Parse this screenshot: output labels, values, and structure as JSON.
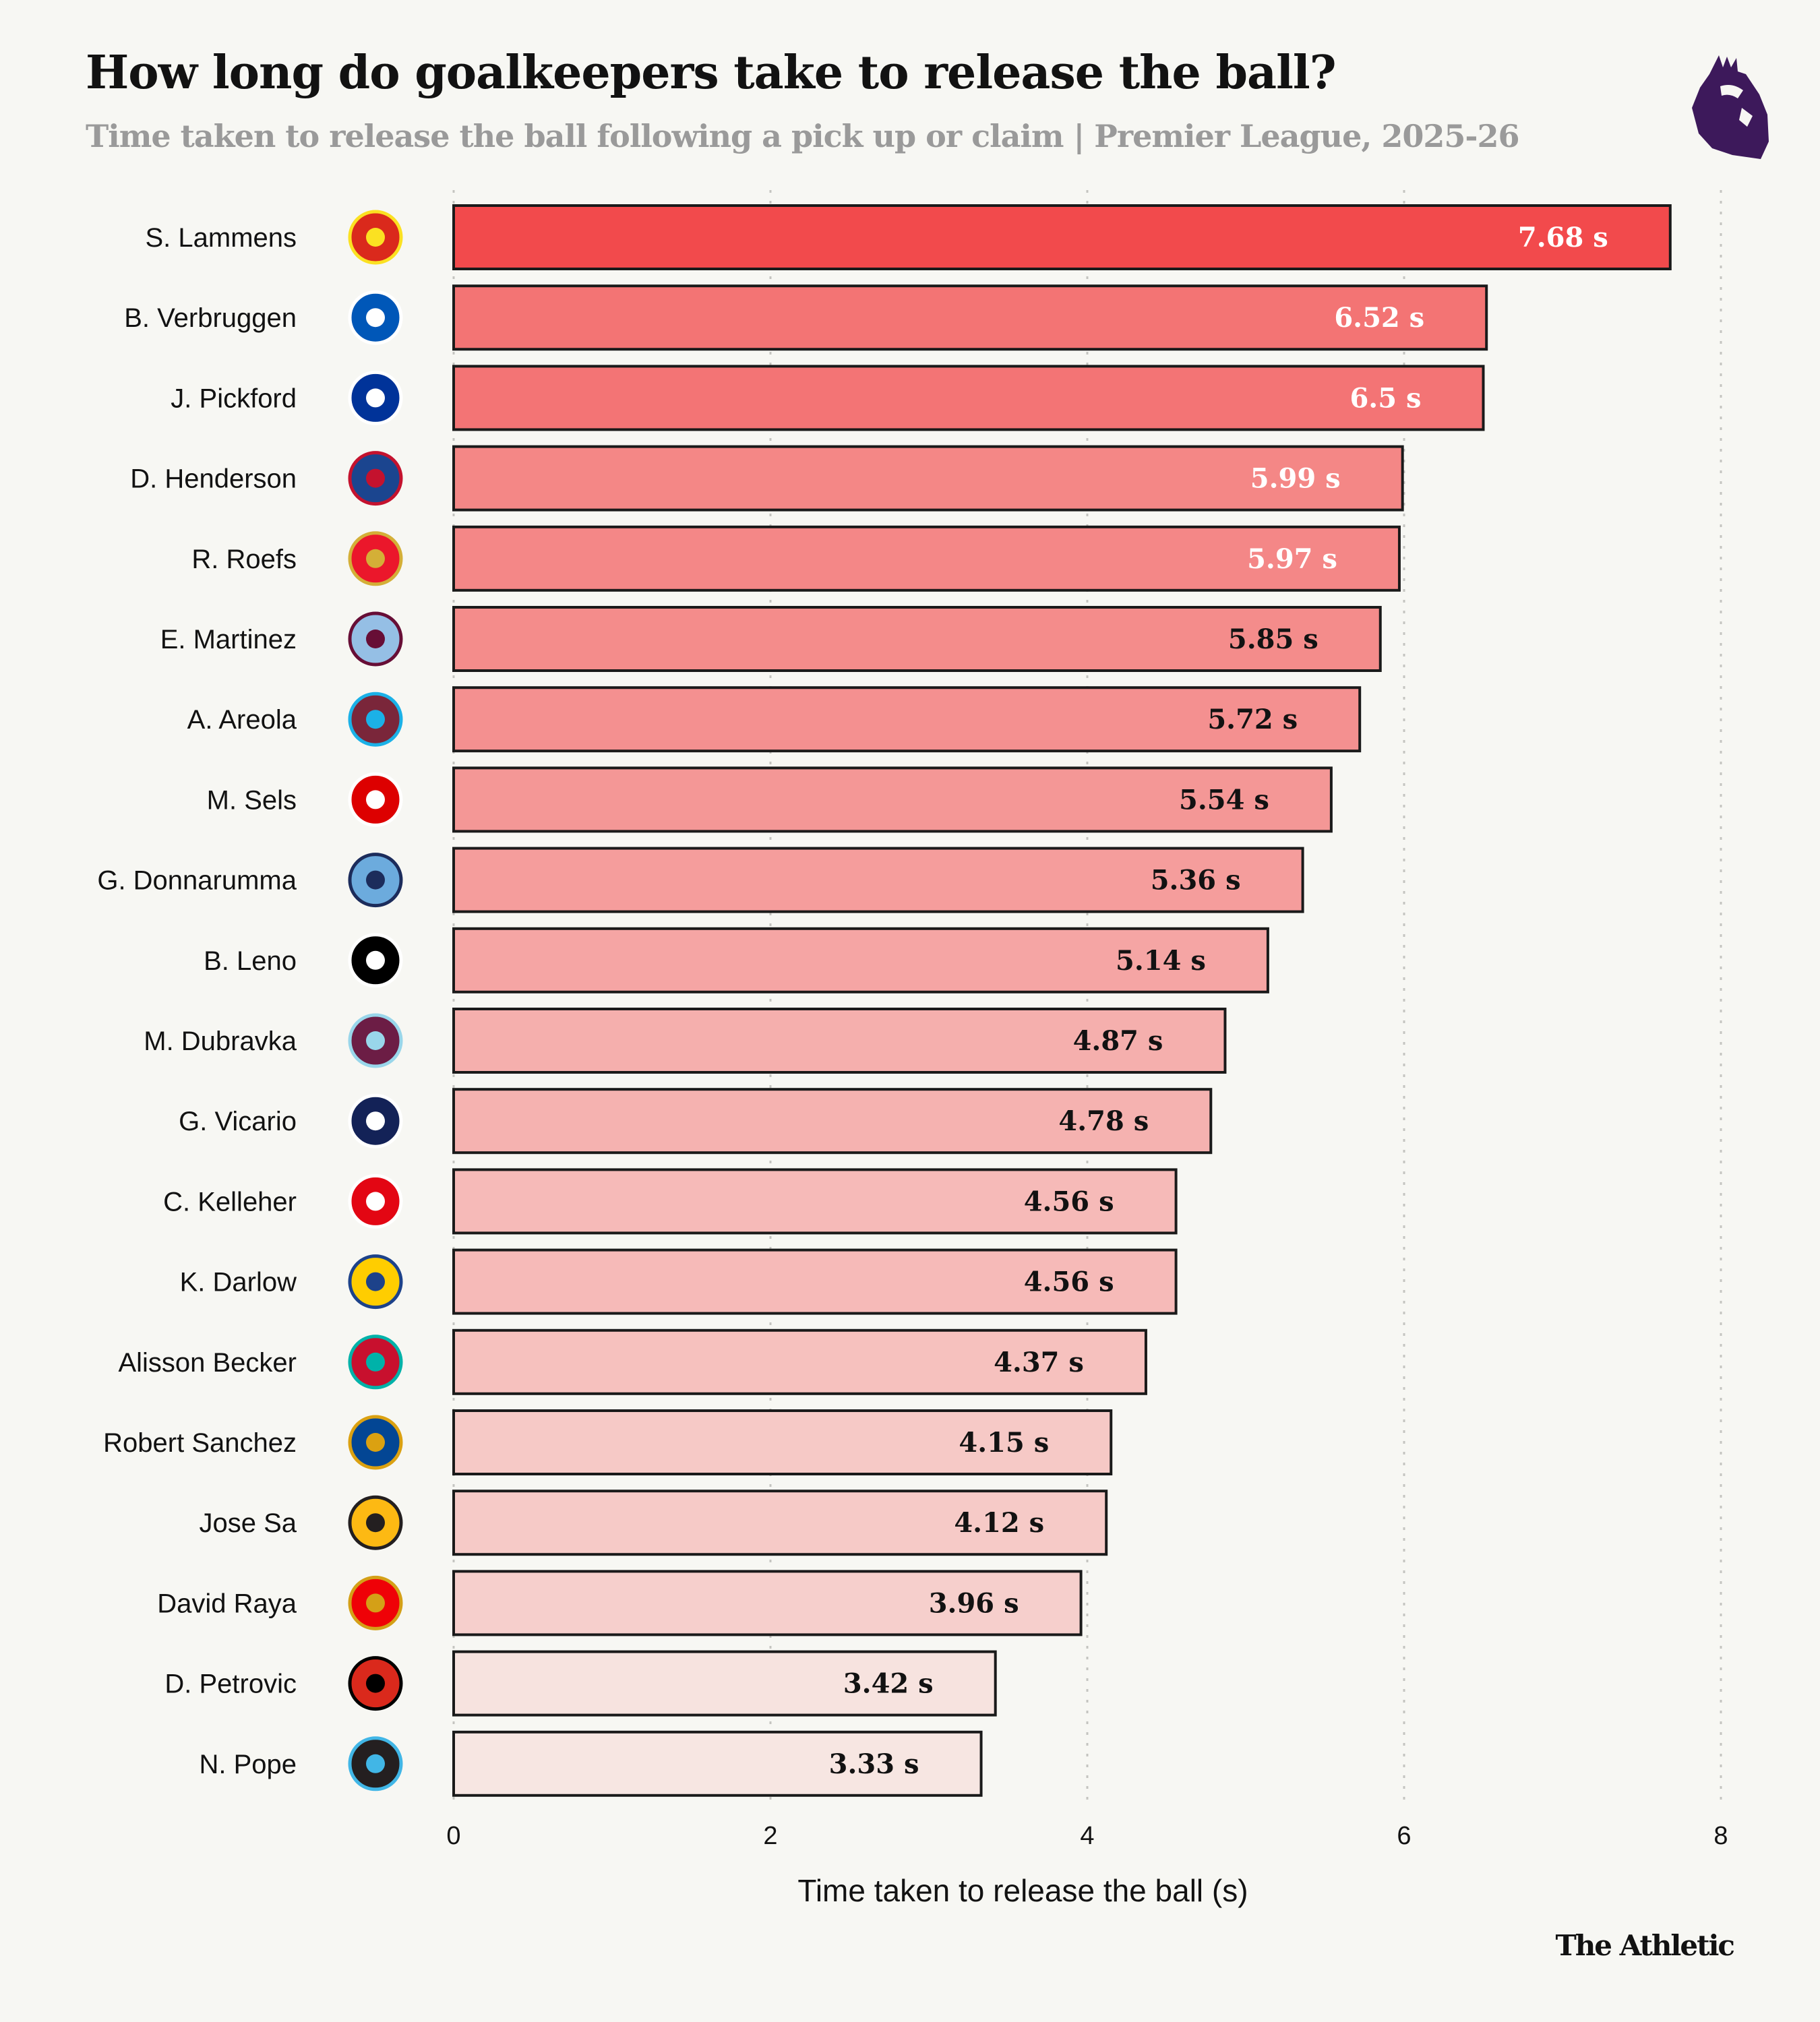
{
  "header": {
    "title": "How long do goalkeepers take to release the ball?",
    "subtitle": "Time taken to release the ball following a pick up or claim | Premier League, 2025-26",
    "logo_icon": "premier-league-lion-icon"
  },
  "footer": {
    "brand": "The Athletic"
  },
  "colors": {
    "max": "#f24a4c",
    "min": "#f7e6e2",
    "bar_outline": "#1a1a1a",
    "logo": "#3d195b"
  },
  "chart_data": {
    "type": "bar",
    "orientation": "horizontal",
    "xlabel": "Time taken to release the ball (s)",
    "xlim": [
      0,
      8
    ],
    "xticks": [
      "0",
      "2",
      "4",
      "6",
      "8"
    ],
    "grid": true,
    "value_suffix": " s",
    "categories": [
      "S. Lammens",
      "B. Verbruggen",
      "J. Pickford",
      "D. Henderson",
      "R. Roefs",
      "E. Martinez",
      "A. Areola",
      "M. Sels",
      "G. Donnarumma",
      "B. Leno",
      "M. Dubravka",
      "G. Vicario",
      "C. Kelleher",
      "K. Darlow",
      "Alisson Becker",
      "Robert Sanchez",
      "Jose Sa",
      "David Raya",
      "D. Petrovic",
      "N. Pope"
    ],
    "values": [
      7.68,
      6.52,
      6.5,
      5.99,
      5.97,
      5.85,
      5.72,
      5.54,
      5.36,
      5.14,
      4.87,
      4.78,
      4.56,
      4.56,
      4.37,
      4.15,
      4.12,
      3.96,
      3.42,
      3.33
    ],
    "labels": [
      "7.68 s",
      "6.52 s",
      "6.5 s",
      "5.99 s",
      "5.97 s",
      "5.85 s",
      "5.72 s",
      "5.54 s",
      "5.36 s",
      "5.14 s",
      "4.87 s",
      "4.78 s",
      "4.56 s",
      "4.56 s",
      "4.37 s",
      "4.15 s",
      "4.12 s",
      "3.96 s",
      "3.42 s",
      "3.33 s"
    ],
    "crests": [
      {
        "icon": "manchester-united-crest-icon",
        "color": "#da291c",
        "accent": "#fbe122"
      },
      {
        "icon": "brighton-crest-icon",
        "color": "#0057b8",
        "accent": "#ffffff"
      },
      {
        "icon": "everton-crest-icon",
        "color": "#003399",
        "accent": "#ffffff"
      },
      {
        "icon": "crystal-palace-crest-icon",
        "color": "#1b458f",
        "accent": "#c4122e"
      },
      {
        "icon": "sunderland-crest-icon",
        "color": "#eb172b",
        "accent": "#d4af37"
      },
      {
        "icon": "aston-villa-crest-icon",
        "color": "#95bfe5",
        "accent": "#670e36"
      },
      {
        "icon": "west-ham-crest-icon",
        "color": "#7a263a",
        "accent": "#1bb1e7"
      },
      {
        "icon": "nottingham-forest-crest-icon",
        "color": "#dd0000",
        "accent": "#ffffff"
      },
      {
        "icon": "manchester-city-crest-icon",
        "color": "#6cabdd",
        "accent": "#1c2c5b"
      },
      {
        "icon": "fulham-crest-icon",
        "color": "#000000",
        "accent": "#ffffff"
      },
      {
        "icon": "burnley-crest-icon",
        "color": "#6c1d45",
        "accent": "#99d6ea"
      },
      {
        "icon": "tottenham-crest-icon",
        "color": "#132257",
        "accent": "#ffffff"
      },
      {
        "icon": "brentford-crest-icon",
        "color": "#e30613",
        "accent": "#ffffff"
      },
      {
        "icon": "leeds-crest-icon",
        "color": "#ffcd00",
        "accent": "#1d428a"
      },
      {
        "icon": "liverpool-crest-icon",
        "color": "#c8102e",
        "accent": "#00b2a9"
      },
      {
        "icon": "chelsea-crest-icon",
        "color": "#034694",
        "accent": "#dba111"
      },
      {
        "icon": "wolves-crest-icon",
        "color": "#fdb913",
        "accent": "#231f20"
      },
      {
        "icon": "arsenal-crest-icon",
        "color": "#ef0107",
        "accent": "#d4a017"
      },
      {
        "icon": "bournemouth-crest-icon",
        "color": "#da291c",
        "accent": "#000000"
      },
      {
        "icon": "newcastle-crest-icon",
        "color": "#241f20",
        "accent": "#41b6e6"
      }
    ]
  }
}
